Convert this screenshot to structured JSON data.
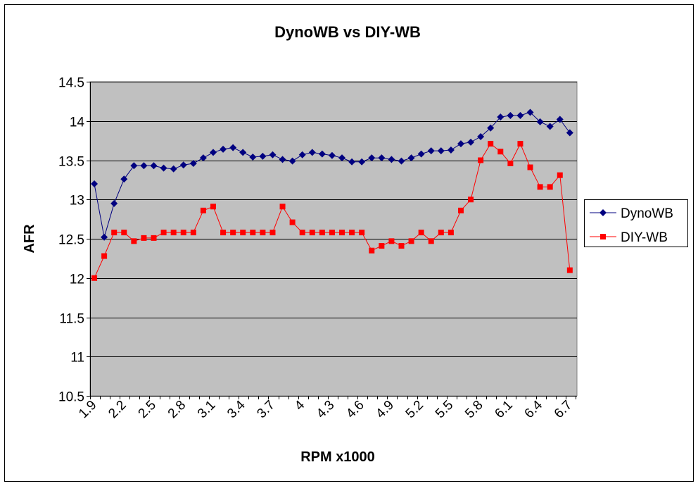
{
  "chart_data": {
    "type": "line",
    "title": "DynoWB vs DIY-WB",
    "xlabel": "RPM x1000",
    "ylabel": "AFR",
    "ylim": [
      10.5,
      14.5
    ],
    "yticks": [
      "10.5",
      "11",
      "11.5",
      "12",
      "12.5",
      "13",
      "13.5",
      "14",
      "14.5"
    ],
    "x": [
      "1.9",
      "2",
      "2.1",
      "2.2",
      "2.3",
      "2.4",
      "2.5",
      "2.6",
      "2.7",
      "2.8",
      "2.9",
      "3",
      "3.1",
      "3.2",
      "3.3",
      "3.4",
      "3.5",
      "3.6",
      "3.7",
      "3.8",
      "3.9",
      "4",
      "4.1",
      "4.2",
      "4.3",
      "4.4",
      "4.5",
      "4.6",
      "4.7",
      "4.8",
      "4.9",
      "5",
      "5.1",
      "5.2",
      "5.3",
      "5.4",
      "5.5",
      "5.6",
      "5.7",
      "5.8",
      "5.9",
      "6",
      "6.1",
      "6.2",
      "6.3",
      "6.4",
      "6.5",
      "6.6",
      "6.7"
    ],
    "xtick_every": 3,
    "grid": "horizontal major",
    "legend_position": "right",
    "series": [
      {
        "name": "DynoWB",
        "color": "#000080",
        "marker": "diamond",
        "values": [
          13.2,
          12.52,
          12.95,
          13.26,
          13.43,
          13.43,
          13.43,
          13.4,
          13.39,
          13.44,
          13.46,
          13.53,
          13.6,
          13.64,
          13.66,
          13.6,
          13.54,
          13.55,
          13.57,
          13.51,
          13.49,
          13.57,
          13.6,
          13.58,
          13.56,
          13.53,
          13.48,
          13.48,
          13.53,
          13.53,
          13.51,
          13.49,
          13.53,
          13.58,
          13.62,
          13.62,
          13.63,
          13.71,
          13.73,
          13.8,
          13.91,
          14.05,
          14.07,
          14.07,
          14.11,
          13.99,
          13.93,
          14.02,
          13.85
        ]
      },
      {
        "name": "DIY-WB",
        "color": "#FF0000",
        "marker": "square",
        "values": [
          12.0,
          12.28,
          12.58,
          12.58,
          12.47,
          12.51,
          12.51,
          12.58,
          12.58,
          12.58,
          12.58,
          12.86,
          12.91,
          12.58,
          12.58,
          12.58,
          12.58,
          12.58,
          12.58,
          12.91,
          12.71,
          12.58,
          12.58,
          12.58,
          12.58,
          12.58,
          12.58,
          12.58,
          12.35,
          12.41,
          12.47,
          12.41,
          12.47,
          12.58,
          12.47,
          12.58,
          12.58,
          12.86,
          13.0,
          13.5,
          13.71,
          13.61,
          13.46,
          13.71,
          13.41,
          13.16,
          13.16,
          13.31,
          12.1
        ]
      }
    ]
  }
}
